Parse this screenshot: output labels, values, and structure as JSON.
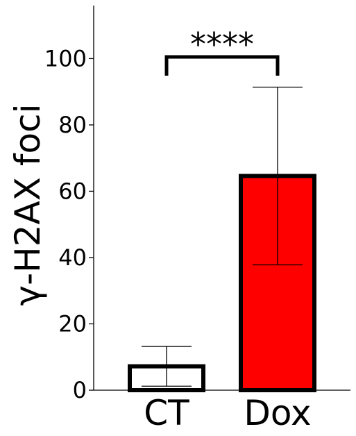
{
  "chart_data": {
    "type": "bar",
    "title": "",
    "xlabel": "",
    "ylabel": "γ-H2AX foci",
    "categories": [
      "CT",
      "Dox"
    ],
    "values": [
      7.2,
      64.6
    ],
    "error": [
      6.0,
      26.8
    ],
    "bar_colors": [
      "#ffffff",
      "#ff0000"
    ],
    "bar_edge_color": "#000000",
    "ylim": [
      0,
      116
    ],
    "yticks": [
      0,
      20,
      40,
      60,
      80,
      100
    ],
    "yticks_labels": [
      "0",
      "20",
      "40",
      "60",
      "80",
      "100"
    ],
    "grid": false,
    "legend": "none",
    "significance": {
      "label": "****",
      "between": [
        "CT",
        "Dox"
      ],
      "y": 100.5
    }
  }
}
